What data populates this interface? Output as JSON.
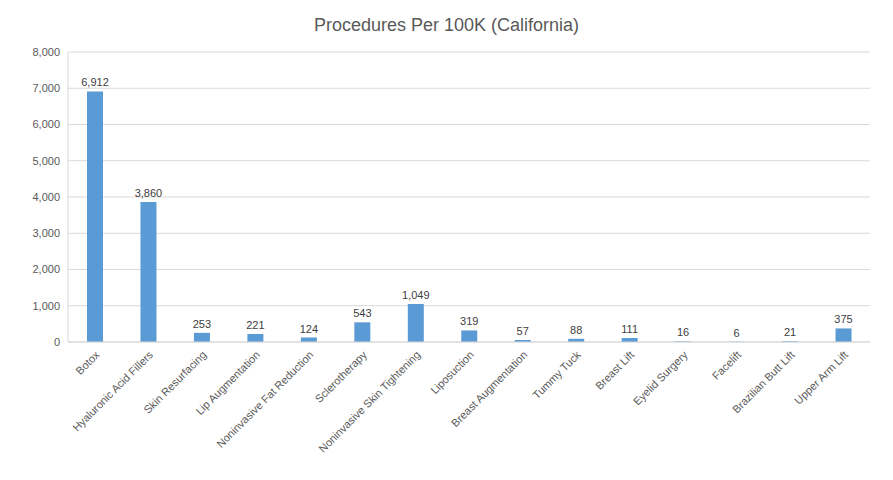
{
  "chart_data": {
    "type": "bar",
    "title": "Procedures Per 100K (California)",
    "categories": [
      "Botox",
      "Hyaluronic Acid Fillers",
      "Skin Resurfacing",
      "Lip Augmentation",
      "Noninvasive Fat Reduction",
      "Sclerotherapy",
      "Noninvasive Skin Tightening",
      "Liposuction",
      "Breast Augmentation",
      "Tummy Tuck",
      "Breast Lift",
      "Eyelid Surgery",
      "Facelift",
      "Brazilian Butt Lift",
      "Upper Arm Lift"
    ],
    "values": [
      6912,
      3860,
      253,
      221,
      124,
      543,
      1049,
      319,
      57,
      88,
      111,
      16,
      6,
      21,
      375
    ],
    "value_labels": [
      "6,912",
      "3,860",
      "253",
      "221",
      "124",
      "543",
      "1,049",
      "319",
      "57",
      "88",
      "111",
      "16",
      "6",
      "21",
      "375"
    ],
    "color": "#5b9bd5",
    "ylim": [
      0,
      8000
    ],
    "yticks": [
      0,
      {
        "value": 1000,
        "label": "1,000"
      },
      {
        "value": 2000,
        "label": "2,000"
      },
      {
        "value": 3000,
        "label": "3,000"
      },
      {
        "value": 4000,
        "label": "4,000"
      },
      {
        "value": 5000,
        "label": "5,000"
      },
      {
        "value": 6000,
        "label": "6,000"
      },
      {
        "value": 7000,
        "label": "7,000"
      },
      {
        "value": 8000,
        "label": "8,000"
      }
    ],
    "grid": true,
    "data_labels": true
  }
}
